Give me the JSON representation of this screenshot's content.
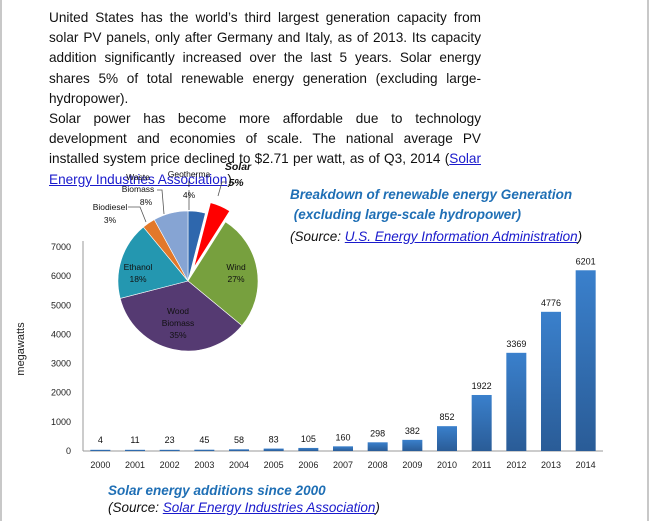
{
  "intro": {
    "paragraph1": "United States has the world’s third largest generation capacity from solar PV panels, only after Germany and Italy, as of 2013. Its capacity addition significantly increased over the last 5 years. Solar energy shares 5% of total renewable energy generation (excluding large-hydropower).",
    "paragraph2_text": "Solar power has become more affordable due to technology development and economies of scale.  The national average PV installed system price declined to $2.71 per watt, as of Q3, 2014 (",
    "paragraph2_link": "Solar Energy Industries Association",
    "paragraph2_end": ")."
  },
  "pie_caption": {
    "title_line1": "Breakdown of renewable energy Generation",
    "title_line2": " (excluding large-scale hydropower)",
    "source_prefix": "(Source: ",
    "source_link": "U.S. Energy Information Administration",
    "source_suffix": ")"
  },
  "bar_caption": {
    "title": "Solar energy additions since 2000",
    "source_prefix": "(Source: ",
    "source_link": "Solar Energy Industries Association",
    "source_suffix": ")"
  },
  "chart_data": [
    {
      "type": "pie",
      "title": "Breakdown of renewable energy Generation (excluding large-scale hydropower)",
      "slices": [
        {
          "label": "Geotherma\nl",
          "value": 4,
          "pct_label": "4%",
          "color": "#2e67ad",
          "exploded": false
        },
        {
          "label": "Solar",
          "value": 5,
          "pct_label": "5%",
          "color": "#ff0000",
          "exploded": true,
          "highlight": true
        },
        {
          "label": "Wind",
          "value": 27,
          "pct_label": "27%",
          "color": "#77a03e",
          "exploded": false
        },
        {
          "label": "Wood Biomass",
          "value": 35,
          "pct_label": "35%",
          "color": "#553a72",
          "exploded": false
        },
        {
          "label": "Ethanol",
          "value": 18,
          "pct_label": "18%",
          "color": "#2497b0",
          "exploded": false
        },
        {
          "label": "Biodiesel",
          "value": 3,
          "pct_label": "3%",
          "color": "#e2782a",
          "exploded": false
        },
        {
          "label": "Waste Biomass",
          "value": 8,
          "pct_label": "8%",
          "color": "#86a4d3",
          "exploded": false
        }
      ]
    },
    {
      "type": "bar",
      "title": "Solar energy additions since 2000",
      "ylabel": "megawatts",
      "xlabel": "",
      "categories": [
        "2000",
        "2001",
        "2002",
        "2003",
        "2004",
        "2005",
        "2006",
        "2007",
        "2008",
        "2009",
        "2010",
        "2011",
        "2012",
        "2013",
        "2014"
      ],
      "values": [
        4,
        11,
        23,
        45,
        58,
        83,
        105,
        160,
        298,
        382,
        852,
        1922,
        3369,
        4776,
        6201
      ],
      "ylim": [
        0,
        7000
      ],
      "yticks": [
        0,
        1000,
        2000,
        3000,
        4000,
        5000,
        6000,
        7000
      ],
      "bar_color": "#2e6bb0",
      "grid": false,
      "data_labels": true
    }
  ]
}
